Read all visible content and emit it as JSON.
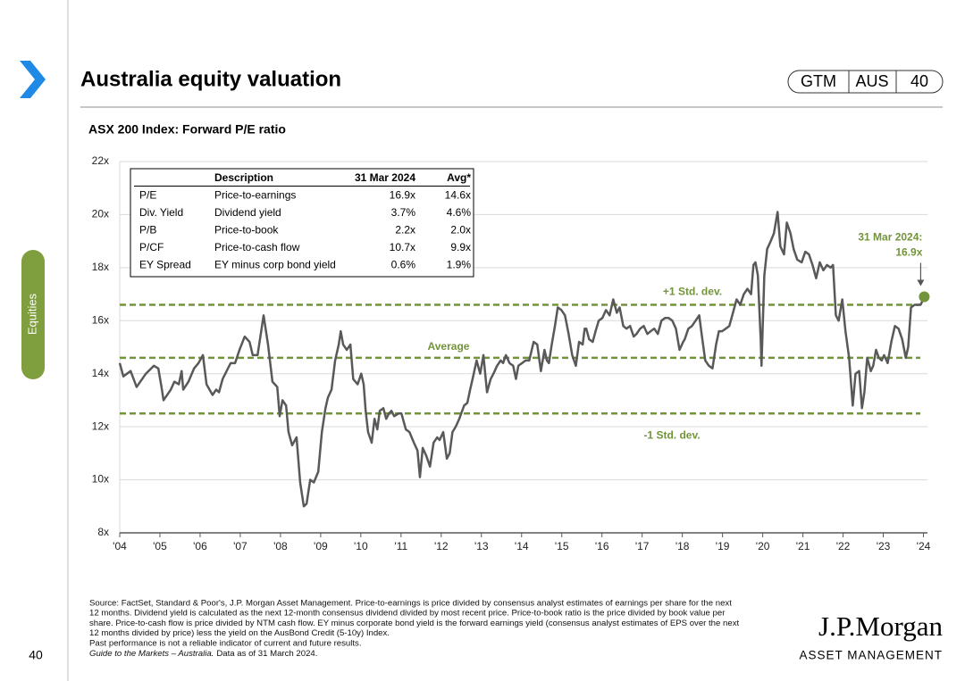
{
  "header": {
    "title": "Australia equity valuation",
    "badge": [
      "GTM",
      "AUS",
      "40"
    ]
  },
  "side_tab": "Equities",
  "page_number": "40",
  "chart_data": {
    "type": "line",
    "title": "ASX 200 Index: Forward P/E ratio",
    "x": [
      2004.0,
      2004.09,
      2004.27,
      2004.42,
      2004.65,
      2004.85,
      2004.96,
      2005.05,
      2005.09,
      2005.27,
      2005.36,
      2005.47,
      2005.54,
      2005.58,
      2005.71,
      2005.85,
      2005.96,
      2006.07,
      2006.16,
      2006.31,
      2006.4,
      2006.47,
      2006.56,
      2006.76,
      2006.87,
      2006.98,
      2007.11,
      2007.23,
      2007.31,
      2007.43,
      2007.52,
      2007.58,
      2007.69,
      2007.8,
      2007.92,
      2007.98,
      2008.05,
      2008.14,
      2008.2,
      2008.29,
      2008.4,
      2008.49,
      2008.58,
      2008.65,
      2008.74,
      2008.83,
      2008.94,
      2009.03,
      2009.12,
      2009.18,
      2009.27,
      2009.36,
      2009.45,
      2009.5,
      2009.56,
      2009.65,
      2009.74,
      2009.81,
      2009.92,
      2010.01,
      2010.07,
      2010.12,
      2010.18,
      2010.27,
      2010.34,
      2010.41,
      2010.47,
      2010.56,
      2010.63,
      2010.7,
      2010.76,
      2010.83,
      2010.94,
      2011.01,
      2011.12,
      2011.21,
      2011.32,
      2011.41,
      2011.47,
      2011.54,
      2011.63,
      2011.72,
      2011.81,
      2011.9,
      2011.96,
      2012.05,
      2012.14,
      2012.21,
      2012.28,
      2012.36,
      2012.45,
      2012.57,
      2012.65,
      2012.72,
      2012.81,
      2012.88,
      2012.97,
      2013.05,
      2013.14,
      2013.23,
      2013.3,
      2013.39,
      2013.48,
      2013.54,
      2013.61,
      2013.7,
      2013.79,
      2013.86,
      2013.92,
      2014.01,
      2014.1,
      2014.19,
      2014.3,
      2014.39,
      2014.48,
      2014.57,
      2014.63,
      2014.68,
      2014.75,
      2014.83,
      2014.9,
      2014.99,
      2015.08,
      2015.17,
      2015.26,
      2015.35,
      2015.43,
      2015.52,
      2015.57,
      2015.61,
      2015.68,
      2015.77,
      2015.84,
      2015.92,
      2016.01,
      2016.1,
      2016.19,
      2016.28,
      2016.37,
      2016.44,
      2016.53,
      2016.61,
      2016.7,
      2016.79,
      2016.86,
      2016.95,
      2017.04,
      2017.13,
      2017.21,
      2017.3,
      2017.39,
      2017.48,
      2017.57,
      2017.66,
      2017.75,
      2017.84,
      2017.93,
      2018.02,
      2018.06,
      2018.15,
      2018.24,
      2018.33,
      2018.42,
      2018.48,
      2018.57,
      2018.66,
      2018.75,
      2018.84,
      2018.91,
      2018.99,
      2019.08,
      2019.17,
      2019.26,
      2019.35,
      2019.44,
      2019.53,
      2019.62,
      2019.71,
      2019.77,
      2019.82,
      2019.88,
      2019.95,
      2019.97,
      2020.04,
      2020.11,
      2020.2,
      2020.28,
      2020.37,
      2020.44,
      2020.53,
      2020.6,
      2020.69,
      2020.77,
      2020.86,
      2020.97,
      2021.06,
      2021.15,
      2021.24,
      2021.33,
      2021.42,
      2021.51,
      2021.6,
      2021.69,
      2021.75,
      2021.82,
      2021.89,
      2021.98,
      2022.06,
      2022.15,
      2022.24,
      2022.31,
      2022.4,
      2022.47,
      2022.53,
      2022.6,
      2022.69,
      2022.75,
      2022.82,
      2022.89,
      2022.96,
      2023.02,
      2023.11,
      2023.2,
      2023.29,
      2023.38,
      2023.47,
      2023.56,
      2023.62,
      2023.69,
      2023.78,
      2023.87,
      2023.93,
      2024.02
    ],
    "series": [
      {
        "color": "#595959",
        "values": [
          14.4,
          13.9,
          14.1,
          13.5,
          14.0,
          14.3,
          14.2,
          13.4,
          13.0,
          13.4,
          13.7,
          13.6,
          14.1,
          13.4,
          13.7,
          14.2,
          14.4,
          14.7,
          13.6,
          13.2,
          13.4,
          13.3,
          13.8,
          14.4,
          14.4,
          14.9,
          15.4,
          15.2,
          14.7,
          14.7,
          15.6,
          16.2,
          15.1,
          13.7,
          13.5,
          12.4,
          13.0,
          12.8,
          11.8,
          11.3,
          11.6,
          9.9,
          9.0,
          9.1,
          10.0,
          9.9,
          10.3,
          11.8,
          12.7,
          13.1,
          13.4,
          14.5,
          15.1,
          15.6,
          15.1,
          14.9,
          15.1,
          13.8,
          13.6,
          14.0,
          13.6,
          12.6,
          11.8,
          11.4,
          12.3,
          11.9,
          12.6,
          12.7,
          12.3,
          12.5,
          12.6,
          12.4,
          12.5,
          12.5,
          11.9,
          11.8,
          11.4,
          11.1,
          10.1,
          11.2,
          10.9,
          10.5,
          11.4,
          11.6,
          11.5,
          11.8,
          10.8,
          11.0,
          11.8,
          12.0,
          12.3,
          12.8,
          12.9,
          13.4,
          14.0,
          14.5,
          14.0,
          14.7,
          13.3,
          13.8,
          14.0,
          14.3,
          14.5,
          14.4,
          14.7,
          14.4,
          14.3,
          13.8,
          14.3,
          14.4,
          14.5,
          14.5,
          15.2,
          15.1,
          14.1,
          14.9,
          14.5,
          14.4,
          15.1,
          15.8,
          16.5,
          16.4,
          16.2,
          15.5,
          14.7,
          14.3,
          15.2,
          15.1,
          15.7,
          15.7,
          15.3,
          15.2,
          15.6,
          16.0,
          16.1,
          16.4,
          16.2,
          16.8,
          16.3,
          16.5,
          15.8,
          15.7,
          15.8,
          15.4,
          15.5,
          15.7,
          15.8,
          15.5,
          15.6,
          15.7,
          15.5,
          16.0,
          16.1,
          16.1,
          16.0,
          15.7,
          14.9,
          15.2,
          15.3,
          15.7,
          15.8,
          16.0,
          16.2,
          15.5,
          14.5,
          14.3,
          14.2,
          15.1,
          15.6,
          15.6,
          15.7,
          15.8,
          16.3,
          16.8,
          16.6,
          17.0,
          17.2,
          17.0,
          18.1,
          18.2,
          17.7,
          15.3,
          14.3,
          17.7,
          18.7,
          19.0,
          19.3,
          20.1,
          18.8,
          18.5,
          19.7,
          19.3,
          18.7,
          18.3,
          18.2,
          18.6,
          18.5,
          18.1,
          17.6,
          18.2,
          17.9,
          18.1,
          18.0,
          18.1,
          16.2,
          16.0,
          16.8,
          15.6,
          14.6,
          12.8,
          14.0,
          14.1,
          12.7,
          13.3,
          14.6,
          14.1,
          14.3,
          14.9,
          14.6,
          14.5,
          14.7,
          14.4,
          15.2,
          15.8,
          15.7,
          15.3,
          14.6,
          15.0,
          16.5,
          16.6,
          16.6,
          16.6,
          16.9
        ]
      }
    ],
    "xlim": [
      2004,
      2024.1
    ],
    "xticks": [
      {
        "value": 2004,
        "label": "'04"
      },
      {
        "value": 2005,
        "label": "'05"
      },
      {
        "value": 2006,
        "label": "'06"
      },
      {
        "value": 2007,
        "label": "'07"
      },
      {
        "value": 2008,
        "label": "'08"
      },
      {
        "value": 2009,
        "label": "'09"
      },
      {
        "value": 2010,
        "label": "'10"
      },
      {
        "value": 2011,
        "label": "'11"
      },
      {
        "value": 2012,
        "label": "'12"
      },
      {
        "value": 2013,
        "label": "'13"
      },
      {
        "value": 2014,
        "label": "'14"
      },
      {
        "value": 2015,
        "label": "'15"
      },
      {
        "value": 2016,
        "label": "'16"
      },
      {
        "value": 2017,
        "label": "'17"
      },
      {
        "value": 2018,
        "label": "'18"
      },
      {
        "value": 2019,
        "label": "'19"
      },
      {
        "value": 2020,
        "label": "'20"
      },
      {
        "value": 2021,
        "label": "'21"
      },
      {
        "value": 2022,
        "label": "'22"
      },
      {
        "value": 2023,
        "label": "'23"
      },
      {
        "value": 2024,
        "label": "'24"
      }
    ],
    "ylim": [
      8,
      22
    ],
    "yticks": [
      {
        "value": 8,
        "label": "8x"
      },
      {
        "value": 10,
        "label": "10x"
      },
      {
        "value": 12,
        "label": "12x"
      },
      {
        "value": 14,
        "label": "14x"
      },
      {
        "value": 16,
        "label": "16x"
      },
      {
        "value": 18,
        "label": "18x"
      },
      {
        "value": 20,
        "label": "20x"
      },
      {
        "value": 22,
        "label": "22x"
      }
    ],
    "grid": true,
    "reference_color": "#72943a",
    "reference_lines": [
      {
        "label": "+1 Std. dev.",
        "value": 16.6
      },
      {
        "label": "Average",
        "value": 14.6
      },
      {
        "label": "-1 Std. dev.",
        "value": 12.5
      }
    ],
    "annotation": [
      "31 Mar 2024:",
      "16.9x"
    ],
    "table": {
      "columns": [
        "Description",
        "31 Mar 2024",
        "Avg*"
      ],
      "rows": [
        [
          "P/E",
          "Price-to-earnings",
          "16.9x",
          "14.6x"
        ],
        [
          "Div. Yield",
          "Dividend yield",
          "3.7%",
          "4.6%"
        ],
        [
          "P/B",
          "Price-to-book",
          "2.2x",
          "2.0x"
        ],
        [
          "P/CF",
          "Price-to-cash flow",
          "10.7x",
          "9.9x"
        ],
        [
          "EY Spread",
          "EY minus corp bond yield",
          "0.6%",
          "1.9%"
        ]
      ]
    }
  },
  "footer": {
    "source": [
      "Source: FactSet, Standard & Poor's, J.P. Morgan Asset Management. Price-to-earnings is price divided by consensus analyst estimates of earnings per share for the next",
      "12 months. Dividend yield is calculated as the next 12-month consensus dividend divided by most recent price. Price-to-book ratio is the price divided by book value per",
      "share. Price-to-cash flow is price divided by NTM cash flow. EY minus corporate bond yield is the forward earnings yield (consensus analyst estimates of EPS over the next",
      "12 months divided by price) less the yield on the AusBond Credit (5-10y) Index.",
      "Past performance is not a reliable indicator of current and future results."
    ],
    "guide": "Guide to the Markets – Australia.",
    "date": "Data as of 31 March 2024."
  },
  "logo": {
    "name": "J.P.Morgan",
    "sub": "ASSET MANAGEMENT"
  }
}
